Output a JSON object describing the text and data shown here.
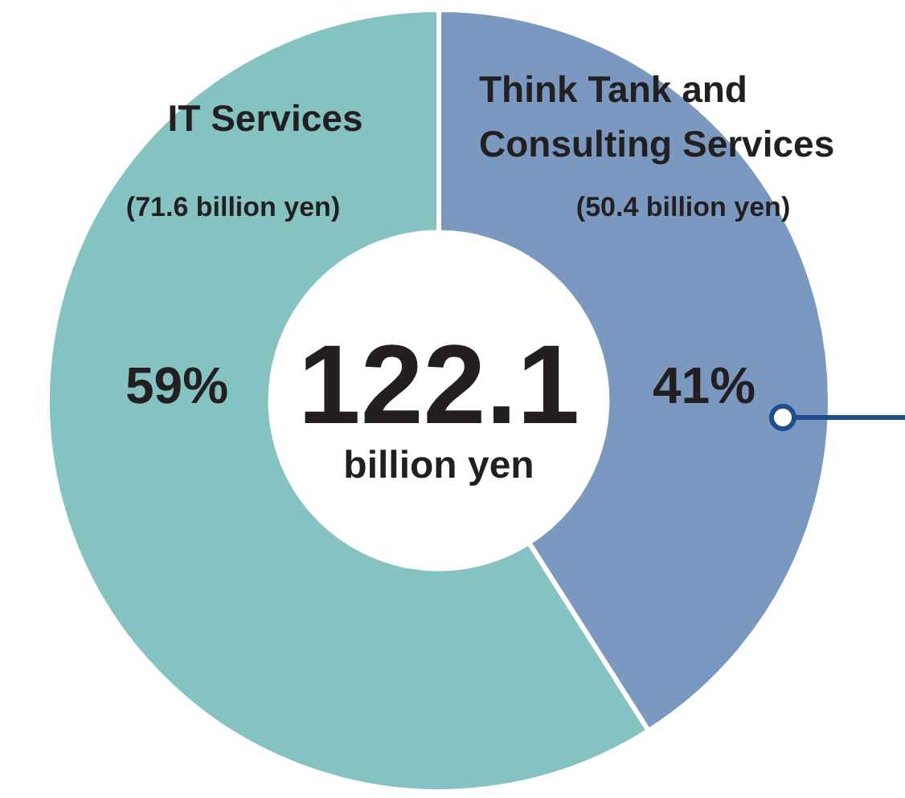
{
  "chart_data": {
    "type": "donut",
    "categories": [
      "IT Services",
      "Think Tank and Consulting Services"
    ],
    "values": [
      59,
      41
    ],
    "colors": [
      "#85c2c2",
      "#7b98c1"
    ],
    "value_labels": [
      "59%",
      "41%"
    ],
    "annotations": [
      "(71.6 billion yen)",
      "(50.4 billion yen)",
      "122.1",
      "billion yen"
    ],
    "legend": false
  }
}
